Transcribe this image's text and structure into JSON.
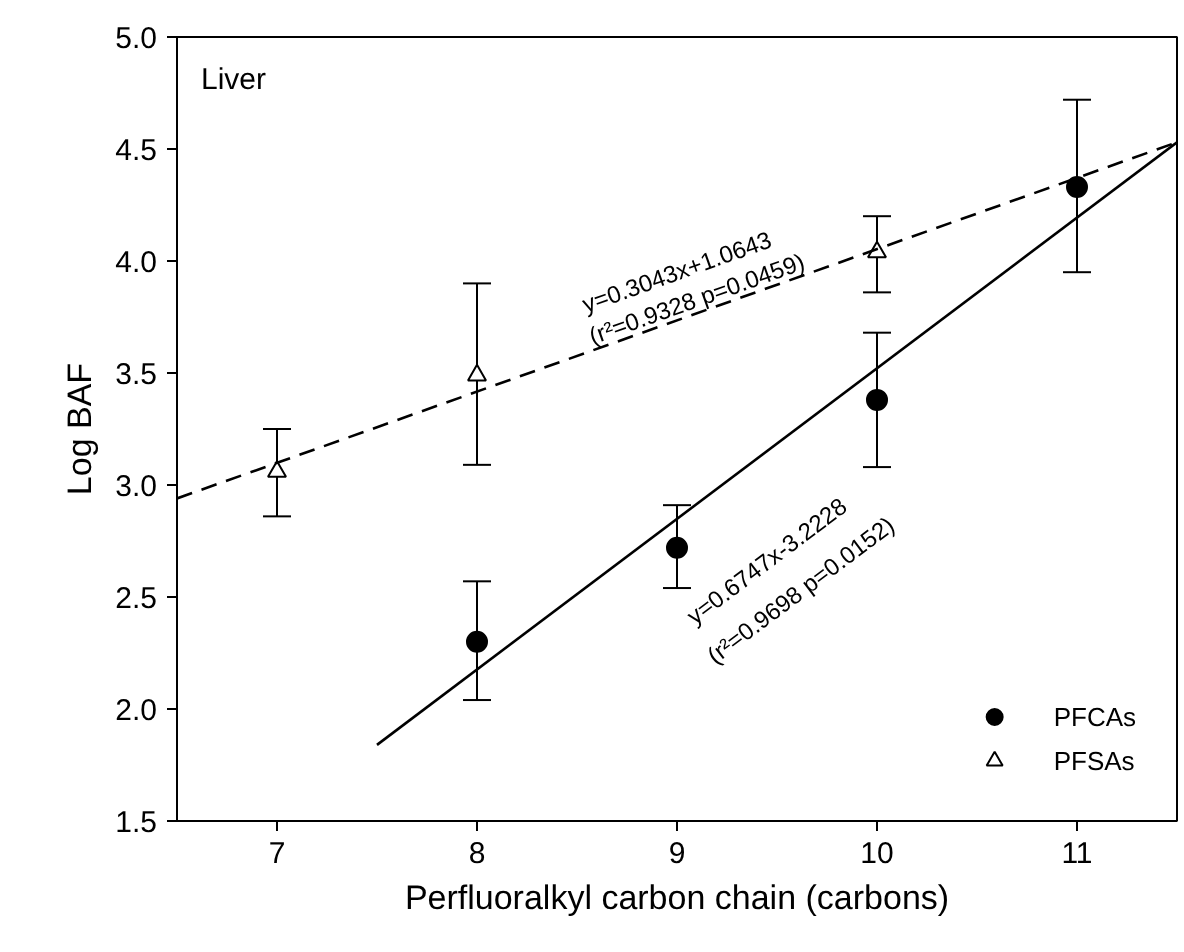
{
  "chart_data": {
    "type": "scatter",
    "xlabel": "Perfluoralkyl carbon chain (carbons)",
    "ylabel": "Log BAF",
    "xlim": [
      6.5,
      11.5
    ],
    "ylim": [
      1.5,
      5.0
    ],
    "xticks": [
      7,
      8,
      9,
      10,
      11
    ],
    "yticks": [
      {
        "value": 1.5,
        "label": "1.5"
      },
      {
        "value": 2.0,
        "label": "2.0"
      },
      {
        "value": 2.5,
        "label": "2.5"
      },
      {
        "value": 3.0,
        "label": "3.0"
      },
      {
        "value": 3.5,
        "label": "3.5"
      },
      {
        "value": 4.0,
        "label": "4.0"
      },
      {
        "value": 4.5,
        "label": "4.5"
      },
      {
        "value": 5.0,
        "label": "5.0"
      }
    ],
    "grid": false,
    "legend": "bottom right",
    "series": [
      {
        "name": "PFCAs",
        "color": "#000000",
        "marker": "circle",
        "x": [
          8,
          9,
          10,
          11
        ],
        "values": [
          2.3,
          2.72,
          3.38,
          4.33
        ],
        "errors": [
          [
            2.04,
            2.57
          ],
          [
            2.54,
            2.91
          ],
          [
            3.08,
            3.68
          ],
          [
            3.95,
            4.72
          ]
        ]
      },
      {
        "name": "PFSAs",
        "color": "#000000",
        "marker": "triangle",
        "x": [
          7,
          8,
          10
        ],
        "values": [
          3.06,
          3.49,
          4.04
        ],
        "errors": [
          [
            2.86,
            3.25
          ],
          [
            3.09,
            3.9
          ],
          [
            3.86,
            4.2
          ]
        ]
      },
      {
        "type": "line",
        "color": "#000000",
        "line_style": "dashed",
        "marker": "none",
        "x": [
          6.5,
          11.5
        ],
        "values": [
          2.94,
          4.53
        ]
      },
      {
        "type": "line",
        "color": "#000000",
        "line_style": "solid",
        "marker": "none",
        "x": [
          7.5,
          11.5
        ],
        "values": [
          1.84,
          4.53
        ]
      }
    ],
    "annotations": [
      "Liver",
      "y=0.3043x+1.0643",
      "(r²=0.9328 p=0.0459)",
      "y=0.6747x-3.2228",
      "(r²=0.9698 p=0.0152)"
    ]
  }
}
